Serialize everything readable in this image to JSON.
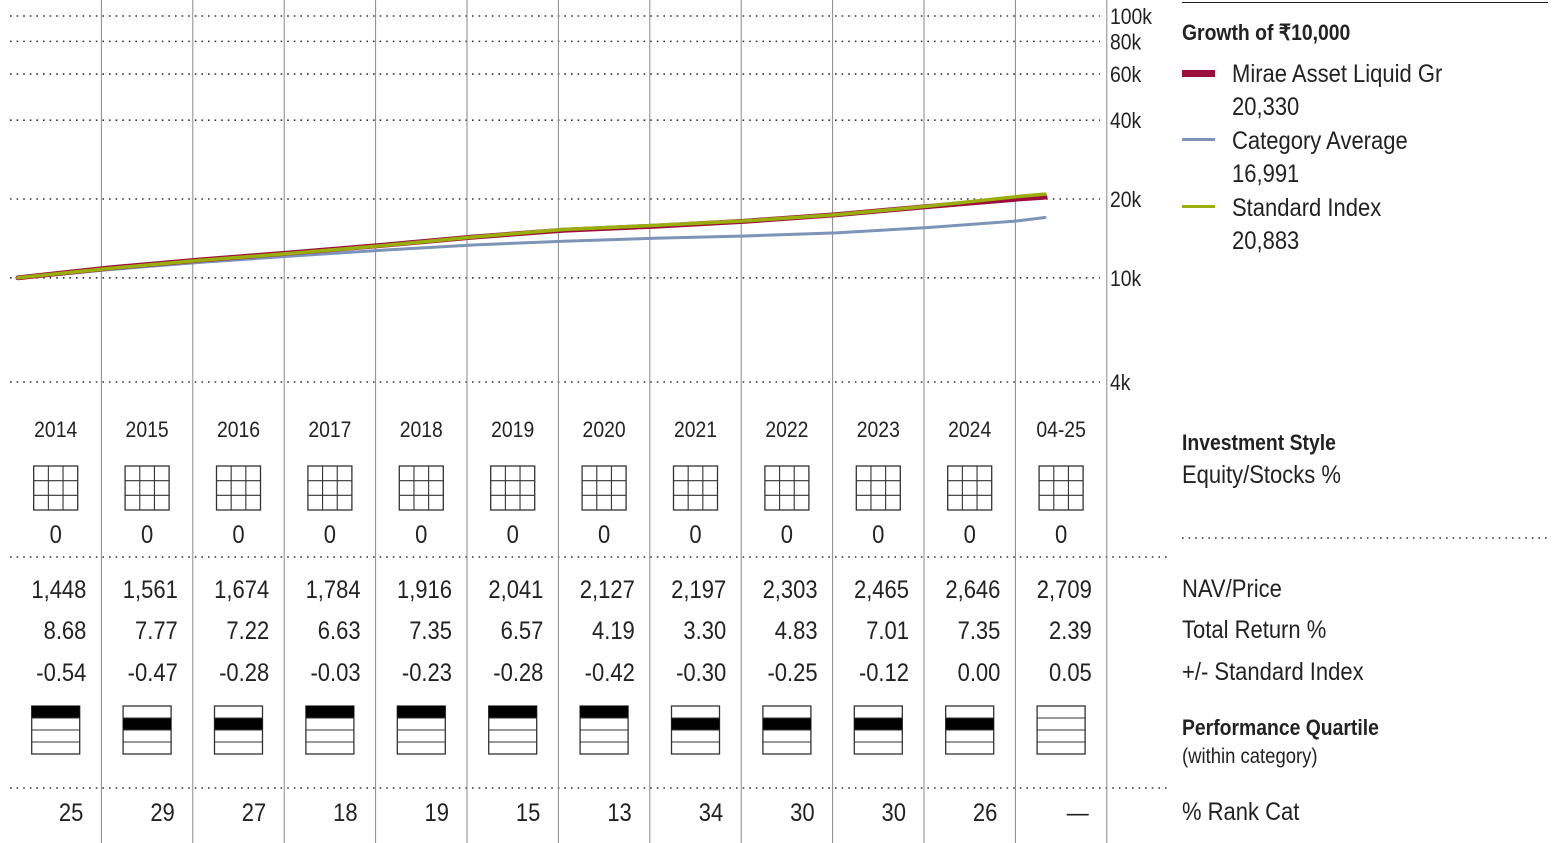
{
  "chart_data": {
    "type": "line",
    "title": "Growth of ₹10,000",
    "y_scale": "log",
    "ylim": [
      4000,
      100000
    ],
    "y_ticks": [
      {
        "value": 100000,
        "label": "100k"
      },
      {
        "value": 80000,
        "label": "80k"
      },
      {
        "value": 60000,
        "label": "60k"
      },
      {
        "value": 40000,
        "label": "40k"
      },
      {
        "value": 20000,
        "label": "20k"
      },
      {
        "value": 10000,
        "label": "10k"
      },
      {
        "value": 4000,
        "label": "4k"
      }
    ],
    "years": [
      "2014",
      "2015",
      "2016",
      "2017",
      "2018",
      "2019",
      "2020",
      "2021",
      "2022",
      "2023",
      "2024",
      "04-25"
    ],
    "x": [
      2014.0,
      2015.0,
      2016.0,
      2017.0,
      2018.0,
      2019.0,
      2020.0,
      2021.0,
      2022.0,
      2023.0,
      2024.0,
      2025.0,
      2025.3
    ],
    "series": [
      {
        "name": "Mirae Asset Liquid Gr",
        "color": "#9b0d3a",
        "final": "20,330",
        "values": [
          10000,
          10900,
          11700,
          12450,
          13300,
          14300,
          15200,
          15750,
          16450,
          17400,
          18700,
          20000,
          20330
        ]
      },
      {
        "name": "Category Average",
        "color": "#7b94b8",
        "final": "16,991",
        "values": [
          9950,
          10750,
          11450,
          12100,
          12750,
          13350,
          13800,
          14150,
          14450,
          14850,
          15550,
          16500,
          16991
        ]
      },
      {
        "name": "Standard Index",
        "color": "#9aae0c",
        "final": "20,883",
        "values": [
          10000,
          10850,
          11650,
          12400,
          13250,
          14300,
          15300,
          15850,
          16500,
          17400,
          18750,
          20450,
          20883
        ]
      }
    ]
  },
  "investment_style": {
    "title": "Investment Style",
    "subtitle": "Equity/Stocks %",
    "equity": [
      "0",
      "0",
      "0",
      "0",
      "0",
      "0",
      "0",
      "0",
      "0",
      "0",
      "0",
      "0"
    ]
  },
  "table": {
    "rows": [
      {
        "label": "NAV/Price",
        "values": [
          "1,448",
          "1,561",
          "1,674",
          "1,784",
          "1,916",
          "2,041",
          "2,127",
          "2,197",
          "2,303",
          "2,465",
          "2,646",
          "2,709"
        ]
      },
      {
        "label": "Total Return %",
        "values": [
          "8.68",
          "7.77",
          "7.22",
          "6.63",
          "7.35",
          "6.57",
          "4.19",
          "3.30",
          "4.83",
          "7.01",
          "7.35",
          "2.39"
        ]
      },
      {
        "label": "+/- Standard Index",
        "values": [
          "-0.54",
          "-0.47",
          "-0.28",
          "-0.03",
          "-0.23",
          "-0.28",
          "-0.42",
          "-0.30",
          "-0.25",
          "-0.12",
          "0.00",
          "0.05"
        ]
      }
    ]
  },
  "quartile": {
    "title": "Performance Quartile",
    "subtitle": "(within category)",
    "values": [
      1,
      2,
      2,
      1,
      1,
      1,
      1,
      2,
      2,
      2,
      2,
      0
    ]
  },
  "rank": {
    "label": "% Rank Cat",
    "values": [
      "25",
      "29",
      "27",
      "18",
      "19",
      "15",
      "13",
      "34",
      "30",
      "30",
      "26",
      "—"
    ]
  }
}
